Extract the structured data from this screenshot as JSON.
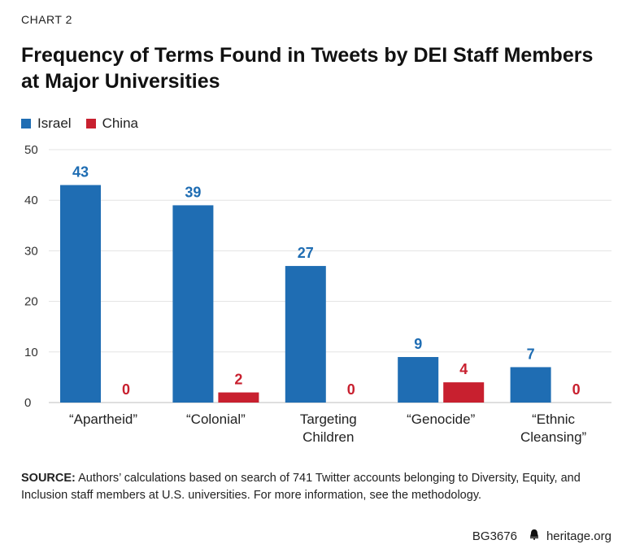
{
  "kicker": "CHART 2",
  "source_label": "SOURCE:",
  "source_text": "Authors’ calculations based on search of 741 Twitter accounts belonging to Diversity, Equity, and Inclusion staff members at U.S. universities. For more information, see the methodology.",
  "footer": {
    "code": "BG3676",
    "site": "heritage.org",
    "icon": "liberty-bell-icon"
  },
  "colors": {
    "Israel": "#1f6db3",
    "China": "#c8202f"
  },
  "chart_data": {
    "type": "bar",
    "title": "Frequency of Terms Found in Tweets by DEI Staff Members at Major Universities",
    "categories": [
      [
        "“Apartheid”"
      ],
      [
        "“Colonial”"
      ],
      [
        "Targeting",
        "Children"
      ],
      [
        "“Genocide”"
      ],
      [
        "“Ethnic",
        "Cleansing”"
      ]
    ],
    "series": [
      {
        "name": "Israel",
        "values": [
          43,
          39,
          27,
          9,
          7
        ]
      },
      {
        "name": "China",
        "values": [
          0,
          2,
          0,
          4,
          0
        ]
      }
    ],
    "ylim": [
      0,
      50
    ],
    "yticks": [
      0,
      10,
      20,
      30,
      40,
      50
    ],
    "grid": true,
    "legend": "top-left",
    "data_labels": true
  }
}
